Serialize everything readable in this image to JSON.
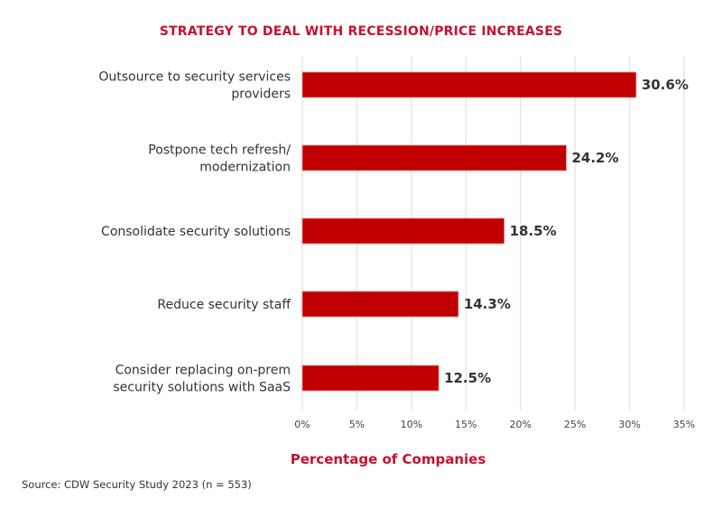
{
  "chart_data": {
    "type": "bar",
    "orientation": "horizontal",
    "title": "STRATEGY TO DEAL WITH RECESSION/PRICE INCREASES",
    "xlabel": "Percentage of Companies",
    "ylabel": "",
    "categories": [
      [
        "Outsource to security services",
        "providers"
      ],
      [
        "Postpone tech refresh/",
        "modernization"
      ],
      [
        "Consolidate security solutions"
      ],
      [
        "Reduce security staff"
      ],
      [
        "Consider replacing on-prem",
        "security solutions with SaaS"
      ]
    ],
    "values": [
      30.6,
      24.2,
      18.5,
      14.3,
      12.5
    ],
    "value_labels": [
      "30.6%",
      "24.2%",
      "18.5%",
      "14.3%",
      "12.5%"
    ],
    "xlim": [
      0,
      35
    ],
    "ticks": [
      0,
      5,
      10,
      15,
      20,
      25,
      30,
      35
    ],
    "tick_labels": [
      "0%",
      "5%",
      "10%",
      "15%",
      "20%",
      "25%",
      "30%",
      "35%"
    ],
    "grid": "vertical",
    "bar_color": "#c00000",
    "title_color": "#c8102e"
  },
  "source": "Source: CDW Security Study 2023 (n = 553)"
}
